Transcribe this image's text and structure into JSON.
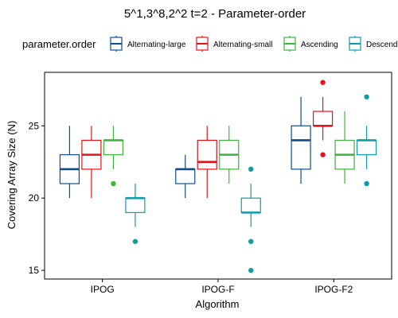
{
  "chart_data": {
    "type": "boxplot",
    "title": "5^1,3^8,2^2 t=2 - Parameter-order",
    "xlabel": "Algorithm",
    "ylabel": "Covering Array Size (N)",
    "categories": [
      "IPOG",
      "IPOG-F",
      "IPOG-F2"
    ],
    "yticks": [
      15,
      20,
      25
    ],
    "ylim": [
      14.4,
      28.7
    ],
    "grid": false,
    "legend": {
      "title": "parameter.order",
      "position": "top"
    },
    "series": [
      {
        "name": "Alternating-large",
        "color": "#0f4c91",
        "boxes": [
          {
            "min": 20,
            "q1": 21,
            "median": 22,
            "q3": 23,
            "max": 25,
            "outliers": []
          },
          {
            "min": 20,
            "q1": 21,
            "median": 22,
            "q3": 22,
            "max": 23,
            "outliers": []
          },
          {
            "min": 21,
            "q1": 22,
            "median": 24,
            "q3": 25,
            "max": 27,
            "outliers": []
          }
        ]
      },
      {
        "name": "Alternating-small",
        "color": "#e8101a",
        "boxes": [
          {
            "min": 20,
            "q1": 22,
            "median": 23,
            "q3": 24,
            "max": 25,
            "outliers": []
          },
          {
            "min": 20,
            "q1": 22,
            "median": 22.5,
            "q3": 24,
            "max": 25,
            "outliers": []
          },
          {
            "min": 24,
            "q1": 25,
            "median": 25,
            "q3": 26,
            "max": 27,
            "outliers": [
              23,
              28
            ]
          }
        ]
      },
      {
        "name": "Ascending",
        "color": "#3db53b",
        "boxes": [
          {
            "min": 22,
            "q1": 23,
            "median": 24,
            "q3": 24,
            "max": 25,
            "outliers": [
              21
            ]
          },
          {
            "min": 21,
            "q1": 22,
            "median": 23,
            "q3": 24,
            "max": 25,
            "outliers": []
          },
          {
            "min": 21,
            "q1": 22,
            "median": 23,
            "q3": 24,
            "max": 26,
            "outliers": []
          }
        ]
      },
      {
        "name": "Descending",
        "color": "#0e9cad",
        "boxes": [
          {
            "min": 18,
            "q1": 19,
            "median": 20,
            "q3": 20,
            "max": 21,
            "outliers": [
              17
            ]
          },
          {
            "min": 18,
            "q1": 19,
            "median": 19,
            "q3": 20,
            "max": 21,
            "outliers": [
              15,
              17,
              22
            ]
          },
          {
            "min": 22,
            "q1": 23,
            "median": 24,
            "q3": 24,
            "max": 25,
            "outliers": [
              21,
              27
            ]
          }
        ]
      }
    ]
  }
}
